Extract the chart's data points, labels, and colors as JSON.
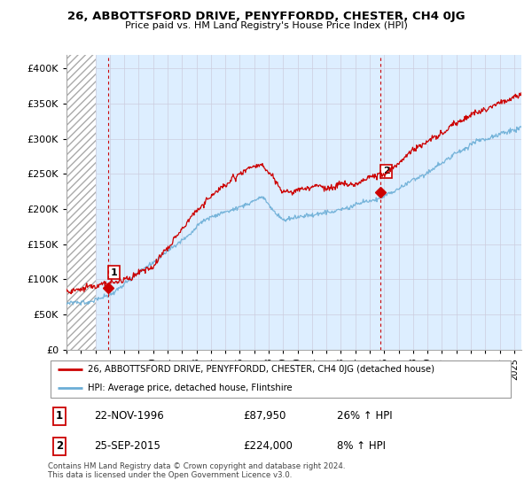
{
  "title": "26, ABBOTTSFORD DRIVE, PENYFFORDD, CHESTER, CH4 0JG",
  "subtitle": "Price paid vs. HM Land Registry's House Price Index (HPI)",
  "ylabel_ticks": [
    "£0",
    "£50K",
    "£100K",
    "£150K",
    "£200K",
    "£250K",
    "£300K",
    "£350K",
    "£400K"
  ],
  "ytick_values": [
    0,
    50000,
    100000,
    150000,
    200000,
    250000,
    300000,
    350000,
    400000
  ],
  "ylim": [
    0,
    420000
  ],
  "xlim_start": 1994.0,
  "xlim_end": 2025.5,
  "purchase1": {
    "date_num": 1996.9,
    "price": 87950,
    "label": "1"
  },
  "purchase2": {
    "date_num": 2015.75,
    "price": 224000,
    "label": "2"
  },
  "legend_line1": "26, ABBOTTSFORD DRIVE, PENYFFORDD, CHESTER, CH4 0JG (detached house)",
  "legend_line2": "HPI: Average price, detached house, Flintshire",
  "table_row1": [
    "1",
    "22-NOV-1996",
    "£87,950",
    "26% ↑ HPI"
  ],
  "table_row2": [
    "2",
    "25-SEP-2015",
    "£224,000",
    "8% ↑ HPI"
  ],
  "footer": "Contains HM Land Registry data © Crown copyright and database right 2024.\nThis data is licensed under the Open Government Licence v3.0.",
  "hpi_color": "#6baed6",
  "price_color": "#cc0000",
  "plot_bg": "#ddeeff",
  "hatch_end_year": 1996.0
}
